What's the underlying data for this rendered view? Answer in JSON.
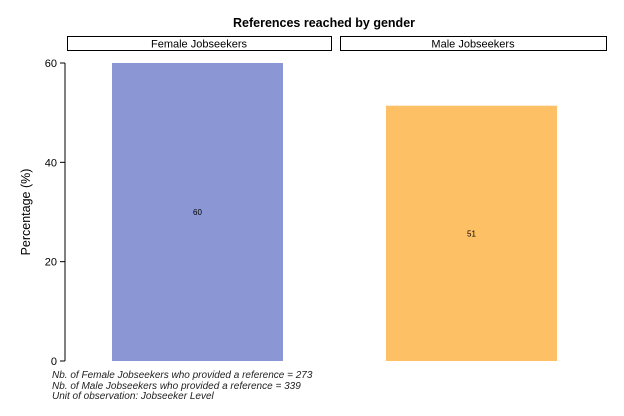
{
  "chart_data": {
    "type": "bar",
    "title": "References reached by gender",
    "ylabel": "Percentage (%)",
    "xlabel": "",
    "ylim": [
      0,
      60
    ],
    "yticks": [
      0,
      20,
      40,
      60
    ],
    "grid": false,
    "panels": [
      {
        "label": "Female Jobseekers",
        "value": 60,
        "value_label": "60",
        "color": "#8b97d4"
      },
      {
        "label": "Male Jobseekers",
        "value": 51.4,
        "value_label": "51",
        "color": "#fec065"
      }
    ]
  },
  "notes": [
    "Nb. of Female Jobseekers who provided a reference = 273",
    "Nb. of Male Jobseekers who provided a reference = 339",
    "Unit of observation: Jobseeker Level"
  ]
}
